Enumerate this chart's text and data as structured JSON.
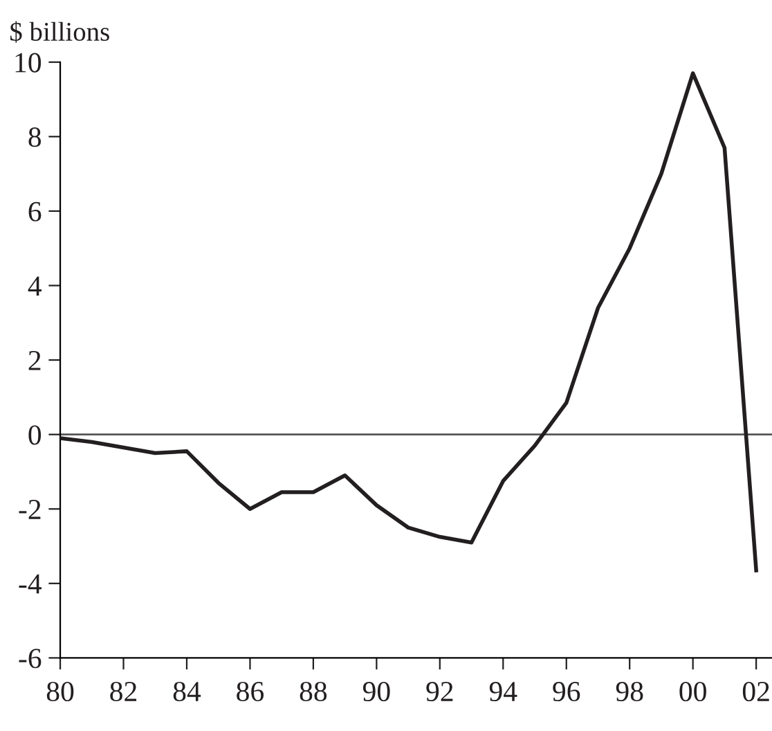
{
  "chart_data": {
    "type": "line",
    "ylabel": "$ billions",
    "x": [
      1980,
      1981,
      1982,
      1983,
      1984,
      1985,
      1986,
      1987,
      1988,
      1989,
      1990,
      1991,
      1992,
      1993,
      1994,
      1995,
      1996,
      1997,
      1998,
      1999,
      2000,
      2001,
      2002
    ],
    "series": [
      {
        "color": "#231f20",
        "values": [
          -0.1,
          -0.2,
          -0.35,
          -0.5,
          -0.45,
          -1.3,
          -2.0,
          -1.55,
          -1.55,
          -1.1,
          -1.9,
          -2.5,
          -2.75,
          -2.9,
          -1.25,
          -0.3,
          0.85,
          3.4,
          5.0,
          7.0,
          9.7,
          7.7,
          -3.65
        ]
      }
    ],
    "xlim": [
      1980,
      2002.5
    ],
    "ylim": [
      -6,
      10
    ],
    "xticks": [
      {
        "value": 1980,
        "label": "80"
      },
      {
        "value": 1982,
        "label": "82"
      },
      {
        "value": 1984,
        "label": "84"
      },
      {
        "value": 1986,
        "label": "86"
      },
      {
        "value": 1988,
        "label": "88"
      },
      {
        "value": 1990,
        "label": "90"
      },
      {
        "value": 1992,
        "label": "92"
      },
      {
        "value": 1994,
        "label": "94"
      },
      {
        "value": 1996,
        "label": "96"
      },
      {
        "value": 1998,
        "label": "98"
      },
      {
        "value": 2000,
        "label": "00"
      },
      {
        "value": 2002,
        "label": "02"
      }
    ],
    "yticks": [
      -6,
      -4,
      -2,
      0,
      2,
      4,
      6,
      8,
      10
    ],
    "ref_lines": [
      {
        "axis": "y",
        "value": 0,
        "color": "#555555"
      }
    ],
    "grid": false,
    "legend": false,
    "marker": "none",
    "line_style": "solid"
  }
}
